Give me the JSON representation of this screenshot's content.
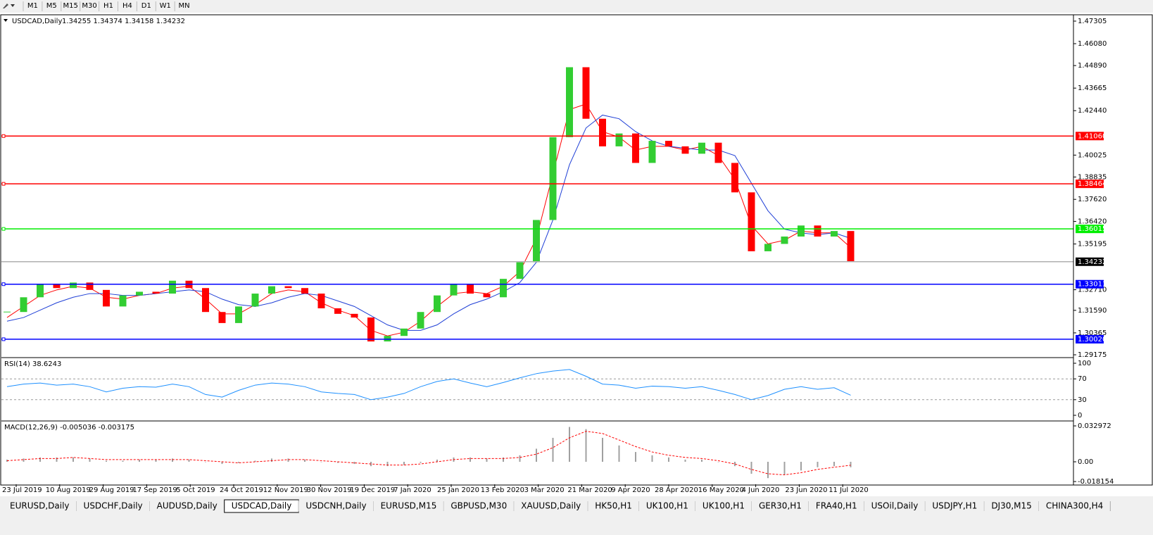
{
  "toolbar": {
    "timeframes": [
      "M1",
      "M5",
      "M15",
      "M30",
      "H1",
      "H4",
      "D1",
      "W1",
      "MN"
    ]
  },
  "chart_data": [
    {
      "type": "candlestick",
      "title": "USDCAD,Daily",
      "subtitle": "1.34255 1.34374 1.34158 1.34232",
      "up_color": "#32cd32",
      "down_color": "#ff0000",
      "values": [
        1.315,
        1.323,
        1.33,
        1.328,
        1.331,
        1.327,
        1.318,
        1.324,
        1.326,
        1.325,
        1.332,
        1.328,
        1.315,
        1.309,
        1.318,
        1.325,
        1.329,
        1.328,
        1.325,
        1.317,
        1.314,
        1.312,
        1.299,
        1.302,
        1.306,
        1.315,
        1.324,
        1.33,
        1.325,
        1.323,
        1.333,
        1.342,
        1.365,
        1.41,
        1.448,
        1.42,
        1.405,
        1.412,
        1.396,
        1.408,
        1.405,
        1.401,
        1.407,
        1.396,
        1.38,
        1.348,
        1.352,
        1.356,
        1.362,
        1.356,
        1.359,
        1.3423
      ],
      "ma": [
        {
          "color": "#ff0000",
          "values": [
            1.312,
            1.318,
            1.324,
            1.327,
            1.329,
            1.328,
            1.323,
            1.322,
            1.324,
            1.325,
            1.328,
            1.329,
            1.322,
            1.314,
            1.314,
            1.319,
            1.325,
            1.327,
            1.326,
            1.32,
            1.316,
            1.313,
            1.305,
            1.302,
            1.304,
            1.31,
            1.318,
            1.325,
            1.326,
            1.325,
            1.329,
            1.337,
            1.355,
            1.39,
            1.425,
            1.428,
            1.413,
            1.41,
            1.403,
            1.405,
            1.405,
            1.403,
            1.405,
            1.4,
            1.387,
            1.362,
            1.352,
            1.354,
            1.359,
            1.358,
            1.358,
            1.35
          ]
        },
        {
          "color": "#1f3fd6",
          "values": [
            1.31,
            1.312,
            1.316,
            1.32,
            1.323,
            1.325,
            1.325,
            1.324,
            1.324,
            1.325,
            1.326,
            1.327,
            1.326,
            1.322,
            1.319,
            1.318,
            1.32,
            1.323,
            1.325,
            1.324,
            1.321,
            1.318,
            1.313,
            1.308,
            1.305,
            1.305,
            1.308,
            1.314,
            1.319,
            1.322,
            1.326,
            1.331,
            1.342,
            1.365,
            1.395,
            1.415,
            1.422,
            1.42,
            1.413,
            1.408,
            1.405,
            1.404,
            1.403,
            1.403,
            1.4,
            1.385,
            1.37,
            1.36,
            1.358,
            1.357,
            1.358,
            1.355
          ]
        }
      ],
      "ylim": [
        1.2906,
        1.47611
      ],
      "yticks": [
        {
          "value": 1.47305,
          "label": "1.47305"
        },
        {
          "value": 1.4608,
          "label": "1.46080"
        },
        {
          "value": 1.4489,
          "label": "1.44890"
        },
        {
          "value": 1.43665,
          "label": "1.43665"
        },
        {
          "value": 1.4244,
          "label": "1.42440"
        },
        {
          "value": 1.40025,
          "label": "1.40025"
        },
        {
          "value": 1.38835,
          "label": "1.38835"
        },
        {
          "value": 1.3762,
          "label": "1.37620"
        },
        {
          "value": 1.3642,
          "label": "1.36420"
        },
        {
          "value": 1.35195,
          "label": "1.35195"
        },
        {
          "value": 1.3271,
          "label": "1.32710"
        },
        {
          "value": 1.3159,
          "label": "1.31590"
        },
        {
          "value": 1.30365,
          "label": "1.30365"
        },
        {
          "value": 1.29175,
          "label": "1.29175"
        }
      ],
      "levels": [
        {
          "value": 1.4106,
          "label": "1.41060",
          "color": "#ff0000"
        },
        {
          "value": 1.38464,
          "label": "1.38464",
          "color": "#ff0000"
        },
        {
          "value": 1.36015,
          "label": "1.36015",
          "color": "#00ee00"
        },
        {
          "value": 1.33011,
          "label": "1.33011",
          "color": "#0000ff"
        },
        {
          "value": 1.3002,
          "label": "1.30020",
          "color": "#0000ff"
        }
      ],
      "current": {
        "value": 1.34232,
        "label": "1.34232",
        "color": "#000000"
      },
      "date_labels": [
        "23 Jul 2019",
        "10 Aug 2019",
        "29 Aug 2019",
        "17 Sep 2019",
        "5 Oct 2019",
        "24 Oct 2019",
        "12 Nov 2019",
        "30 Nov 2019",
        "19 Dec 2019",
        "7 Jan 2020",
        "25 Jan 2020",
        "13 Feb 2020",
        "3 Mar 2020",
        "21 Mar 2020",
        "9 Apr 2020",
        "28 Apr 2020",
        "16 May 2020",
        "4 Jun 2020",
        "23 Jun 2020",
        "11 Jul 2020"
      ]
    },
    {
      "type": "line",
      "title": "RSI(14) 38.6243",
      "color": "#1e90ff",
      "values": [
        55,
        60,
        62,
        58,
        60,
        55,
        45,
        52,
        55,
        54,
        60,
        55,
        40,
        35,
        48,
        58,
        62,
        60,
        55,
        45,
        42,
        40,
        30,
        35,
        42,
        55,
        65,
        70,
        62,
        55,
        63,
        72,
        80,
        85,
        88,
        75,
        60,
        58,
        52,
        56,
        55,
        52,
        55,
        48,
        40,
        30,
        38,
        50,
        55,
        50,
        53,
        38.6
      ],
      "ylim": [
        -9.5,
        109.5
      ],
      "yticks": [
        100,
        70,
        30,
        0
      ],
      "levels": [
        70,
        30
      ]
    },
    {
      "type": "macd",
      "title": "MACD(12,26,9) -0.005036 -0.003175",
      "hist_color": "#a0a0a0",
      "signal_color": "#ff0000",
      "values": [
        0.002,
        0.003,
        0.004,
        0.004,
        0.004,
        0.003,
        0.001,
        0.001,
        0.002,
        0.002,
        0.003,
        0.002,
        0.0,
        -0.002,
        -0.001,
        0.001,
        0.003,
        0.003,
        0.002,
        0.0,
        -0.001,
        -0.002,
        -0.004,
        -0.004,
        -0.003,
        -0.001,
        0.002,
        0.004,
        0.004,
        0.003,
        0.004,
        0.006,
        0.012,
        0.022,
        0.032,
        0.03,
        0.022,
        0.015,
        0.009,
        0.006,
        0.004,
        0.002,
        0.002,
        0.0,
        -0.004,
        -0.011,
        -0.015,
        -0.012,
        -0.008,
        -0.005,
        -0.004,
        -0.005036
      ],
      "signal": [
        0.001,
        0.002,
        0.003,
        0.003,
        0.004,
        0.003,
        0.002,
        0.002,
        0.002,
        0.002,
        0.002,
        0.002,
        0.001,
        0.0,
        -0.001,
        0.0,
        0.001,
        0.002,
        0.002,
        0.001,
        0.0,
        -0.001,
        -0.002,
        -0.003,
        -0.003,
        -0.002,
        0.0,
        0.002,
        0.003,
        0.003,
        0.003,
        0.004,
        0.007,
        0.013,
        0.022,
        0.028,
        0.026,
        0.02,
        0.014,
        0.009,
        0.006,
        0.004,
        0.003,
        0.001,
        -0.002,
        -0.007,
        -0.011,
        -0.012,
        -0.01,
        -0.007,
        -0.005,
        -0.003175
      ],
      "ylim": [
        -0.02069,
        0.03685
      ],
      "yticks": [
        0.032972,
        {
          "value": 0,
          "label": "0.00"
        },
        -0.018154
      ]
    }
  ],
  "tabs": [
    "EURUSD,Daily",
    "USDCHF,Daily",
    "AUDUSD,Daily",
    "USDCAD,Daily",
    "USDCNH,Daily",
    "EURUSD,M15",
    "GBPUSD,M30",
    "XAUUSD,Daily",
    "HK50,H1",
    "UK100,H1",
    "UK100,H1",
    "GER30,H1",
    "FRA40,H1",
    "USOil,Daily",
    "USDJPY,H1",
    "DJ30,M15",
    "CHINA300,H4"
  ],
  "active_tab": 3
}
